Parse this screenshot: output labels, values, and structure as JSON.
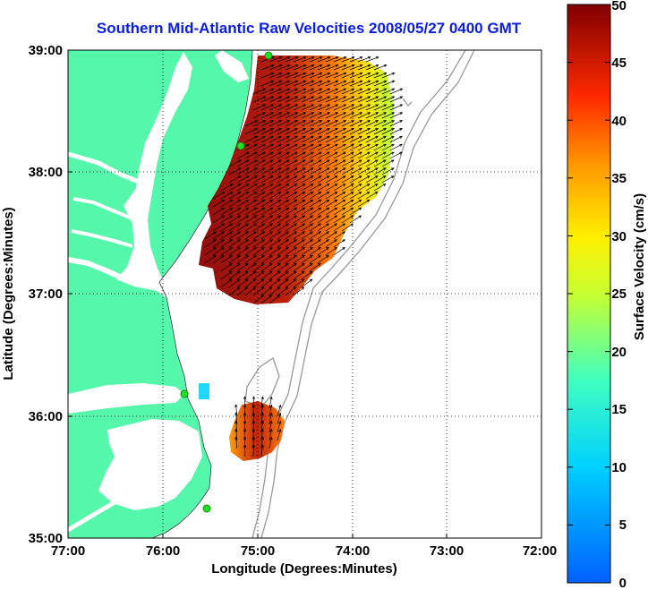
{
  "title": "Southern Mid-Atlantic Raw Velocities 2008/05/27 0400 GMT",
  "map": {
    "xlabel": "Longitude (Degrees:Minutes)",
    "ylabel": "Latitude (Degrees:Minutes)",
    "lon_range": [
      -77,
      -72
    ],
    "lat_range": [
      35,
      39
    ],
    "x_ticks": [
      "77:00",
      "76:00",
      "75:00",
      "74:00",
      "73:00",
      "72:00"
    ],
    "y_ticks": [
      "39:00",
      "38:00",
      "37:00",
      "36:00",
      "35:00"
    ],
    "grid": "dotted",
    "land_color": "#55f7aa",
    "station_color": "#22e022"
  },
  "colorbar": {
    "label": "Surface Velocity (cm/s)",
    "min": 0,
    "max": 50,
    "ticks": [
      "50",
      "45",
      "40",
      "35",
      "30",
      "25",
      "20",
      "15",
      "10",
      "5",
      "0"
    ]
  }
}
